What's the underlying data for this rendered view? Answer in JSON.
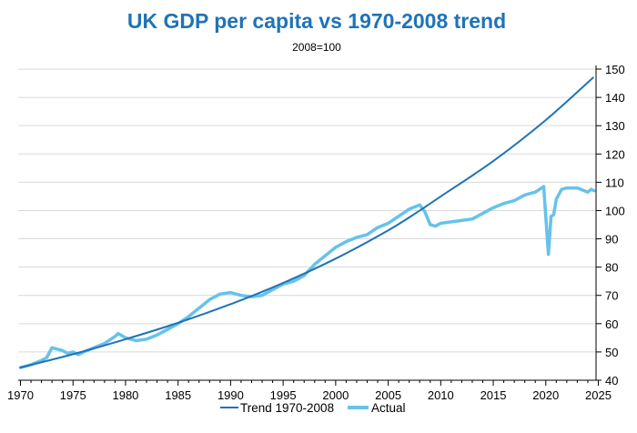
{
  "chart_data": {
    "type": "line",
    "title": "UK GDP per capita vs 1970-2008 trend",
    "subtitle": "2008=100",
    "xlabel": "",
    "ylabel": "",
    "xlim": [
      1970,
      2025
    ],
    "ylim": [
      40,
      150
    ],
    "x_ticks": [
      "1970",
      "1975",
      "1980",
      "1985",
      "1990",
      "1995",
      "2000",
      "2005",
      "2010",
      "2015",
      "2020",
      "2025"
    ],
    "y_ticks": [
      "40",
      "50",
      "60",
      "70",
      "80",
      "90",
      "100",
      "110",
      "120",
      "130",
      "140",
      "150"
    ],
    "grid": true,
    "legend_position": "bottom",
    "colors": {
      "trend": "#1f73b7",
      "actual": "#66c2ea",
      "title": "#1f73b7",
      "grid": "#d9d9d9",
      "axis": "#000000"
    },
    "series": [
      {
        "name": "Trend 1970-2008",
        "x": [
          1970,
          1975,
          1980,
          1985,
          1990,
          1995,
          2000,
          2005,
          2008,
          2010,
          2015,
          2020,
          2024.5
        ],
        "values": [
          44.5,
          49.2,
          54.5,
          60.3,
          66.9,
          74.4,
          83.0,
          93.0,
          100.0,
          105.0,
          117.5,
          132.0,
          147.0
        ]
      },
      {
        "name": "Actual",
        "x": [
          1970,
          1971,
          1972,
          1972.5,
          1973,
          1973.5,
          1974,
          1974.5,
          1975,
          1975.5,
          1976,
          1977,
          1978,
          1979,
          1979.3,
          1980,
          1981,
          1982,
          1983,
          1984,
          1985,
          1986,
          1987,
          1988,
          1989,
          1990,
          1991,
          1992,
          1993,
          1994,
          1995,
          1996,
          1997,
          1998,
          1999,
          2000,
          2001,
          2002,
          2003,
          2004,
          2005,
          2006,
          2007,
          2008,
          2008.5,
          2009,
          2009.5,
          2010,
          2011,
          2012,
          2013,
          2014,
          2015,
          2016,
          2017,
          2018,
          2019,
          2019.8,
          2020.25,
          2020.5,
          2020.75,
          2021,
          2021.5,
          2022,
          2023,
          2024,
          2024.3,
          2024.6
        ],
        "values": [
          44.5,
          45.5,
          47.0,
          48.0,
          51.5,
          51.0,
          50.5,
          49.5,
          50.0,
          49.0,
          50.0,
          51.5,
          53.0,
          55.5,
          56.5,
          55.0,
          54.0,
          54.5,
          56.0,
          58.0,
          60.0,
          62.5,
          65.5,
          68.5,
          70.5,
          71.0,
          70.0,
          69.5,
          70.0,
          72.0,
          74.0,
          75.0,
          77.0,
          81.0,
          84.0,
          87.0,
          89.0,
          90.5,
          91.5,
          94.0,
          95.5,
          98.0,
          100.5,
          102.0,
          99.5,
          95.0,
          94.5,
          95.5,
          96.0,
          96.5,
          97.0,
          99.0,
          101.0,
          102.5,
          103.5,
          105.5,
          106.5,
          108.5,
          84.5,
          98.0,
          98.5,
          104.0,
          107.5,
          108.0,
          108.0,
          106.5,
          107.5,
          107.0
        ]
      }
    ]
  }
}
